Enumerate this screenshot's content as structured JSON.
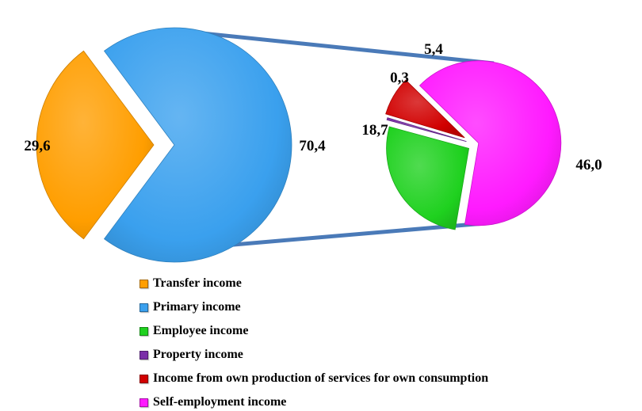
{
  "chart_data": {
    "type": "pie",
    "subtype": "pie-of-pie",
    "main_pie": {
      "slices": [
        {
          "label": "Transfer income",
          "value": 29.6,
          "display": "29,6",
          "color": "#ff9e00"
        },
        {
          "label": "Primary income",
          "value": 70.4,
          "display": "70,4",
          "color": "#3aa0ee"
        }
      ]
    },
    "secondary_pie": {
      "breakdown_of": "Primary income",
      "slices": [
        {
          "label": "Employee income",
          "value": 18.7,
          "display": "18,7",
          "color": "#1fd11f"
        },
        {
          "label": "Property income",
          "value": 0.3,
          "display": "0,3",
          "color": "#7a2ea8"
        },
        {
          "label": "Income from own production of services for own consumption",
          "value": 5.4,
          "display": "5,4",
          "color": "#d10000"
        },
        {
          "label": "Self-employment income",
          "value": 46.0,
          "display": "46,0",
          "color": "#ff1aff"
        }
      ]
    },
    "legend": {
      "position": "bottom",
      "entries": [
        {
          "label": "Transfer income",
          "color": "#ff9e00"
        },
        {
          "label": "Primary income",
          "color": "#3aa0ee"
        },
        {
          "label": "Employee income",
          "color": "#1fd11f"
        },
        {
          "label": "Property income",
          "color": "#7a2ea8"
        },
        {
          "label": "Income from own production of services for own consumption",
          "color": "#d10000"
        },
        {
          "label": "Self-employment income",
          "color": "#ff1aff"
        }
      ]
    },
    "connector_color": "#4a7ab8"
  }
}
